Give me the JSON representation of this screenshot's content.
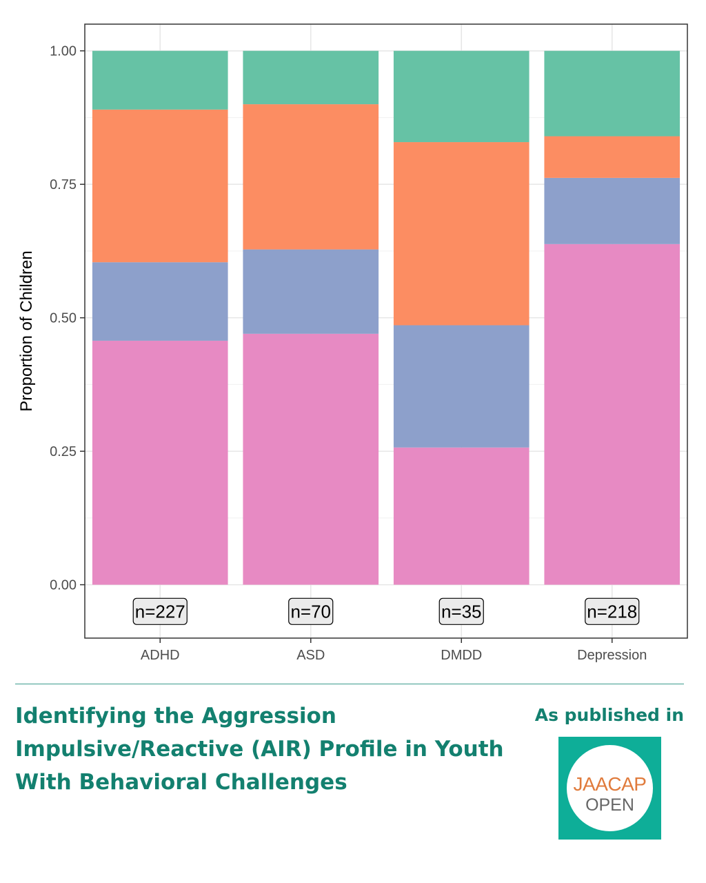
{
  "chart_data": {
    "type": "bar",
    "stacked": true,
    "categories": [
      "ADHD",
      "ASD",
      "DMDD",
      "Depression"
    ],
    "counts": [
      "n=227",
      "n=70",
      "n=35",
      "n=218"
    ],
    "series": [
      {
        "color": "#e78ac3",
        "values": [
          0.457,
          0.47,
          0.257,
          0.638
        ]
      },
      {
        "color": "#8da0cb",
        "values": [
          0.147,
          0.158,
          0.229,
          0.124
        ]
      },
      {
        "color": "#fc8d62",
        "values": [
          0.286,
          0.272,
          0.343,
          0.078
        ]
      },
      {
        "color": "#66c2a5",
        "values": [
          0.11,
          0.1,
          0.171,
          0.16
        ]
      }
    ],
    "ylabel": "Proportion of Children",
    "xlabel": "",
    "yticks": [
      "0.00",
      "0.25",
      "0.50",
      "0.75",
      "1.00"
    ],
    "ylim": [
      -0.1,
      1.05
    ],
    "grid": true
  },
  "footer": {
    "title": "Identifying the Aggression Impulsive/Reactive (AIR) Profile in Youth With Behavioral Challenges",
    "published_label": "As published in",
    "logo_line1": "JAACAP",
    "logo_line2": "OPEN"
  }
}
